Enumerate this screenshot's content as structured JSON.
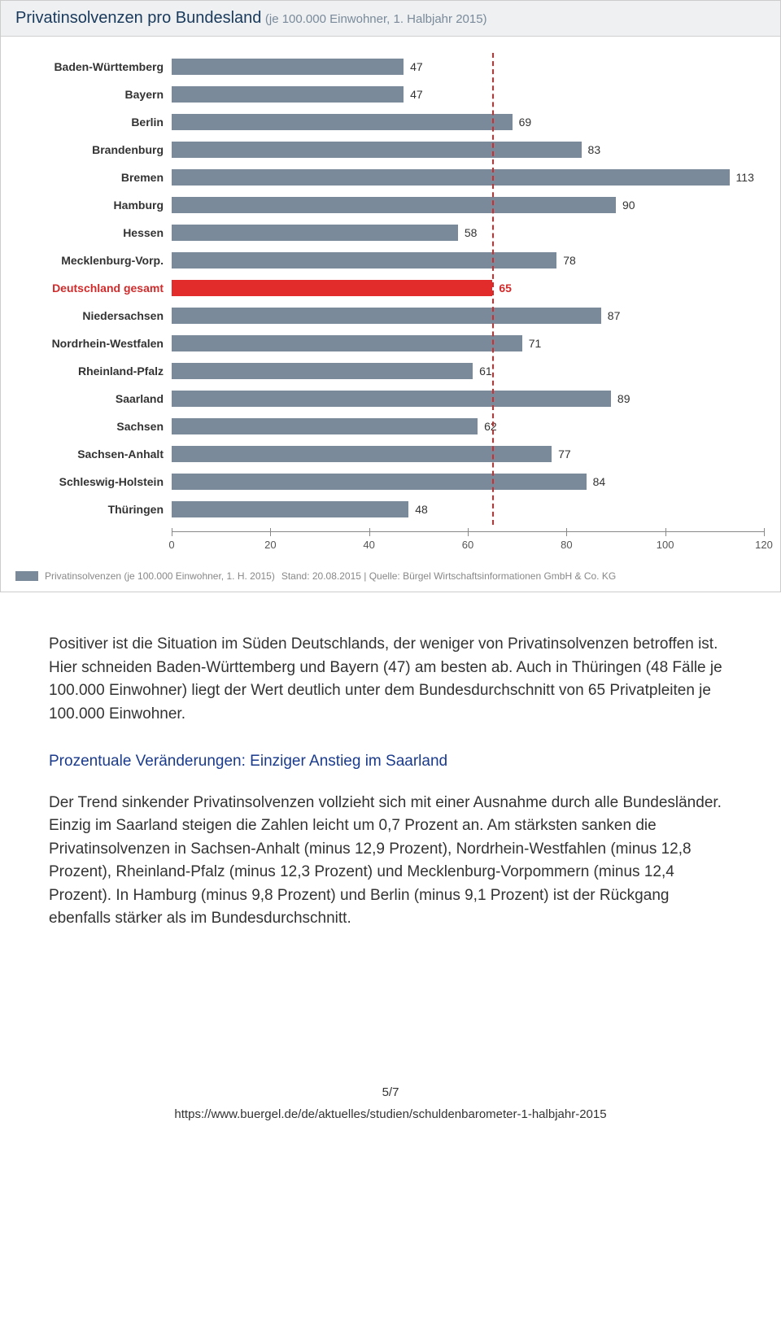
{
  "chart": {
    "title": "Privatinsolvenzen pro Bundesland",
    "subtitle": "(je 100.000 Einwohner, 1. Halbjahr 2015)",
    "type": "bar",
    "xmin": 0,
    "xmax": 120,
    "xtick_step": 20,
    "xticks": [
      0,
      20,
      40,
      60,
      80,
      100,
      120
    ],
    "reference_value": 65,
    "reference_color": "#d12b2b",
    "bar_color": "#7a8a9a",
    "highlight_bar_color": "#e22b2b",
    "label_fontsize": 14,
    "value_fontsize": 14,
    "background_color": "#ffffff",
    "header_bg": "#eef0f2",
    "rows": [
      {
        "label": "Baden-Württemberg",
        "value": 47,
        "highlight": false
      },
      {
        "label": "Bayern",
        "value": 47,
        "highlight": false
      },
      {
        "label": "Berlin",
        "value": 69,
        "highlight": false
      },
      {
        "label": "Brandenburg",
        "value": 83,
        "highlight": false
      },
      {
        "label": "Bremen",
        "value": 113,
        "highlight": false
      },
      {
        "label": "Hamburg",
        "value": 90,
        "highlight": false
      },
      {
        "label": "Hessen",
        "value": 58,
        "highlight": false
      },
      {
        "label": "Mecklenburg-Vorp.",
        "value": 78,
        "highlight": false
      },
      {
        "label": "Deutschland gesamt",
        "value": 65,
        "highlight": true
      },
      {
        "label": "Niedersachsen",
        "value": 87,
        "highlight": false
      },
      {
        "label": "Nordrhein-Westfalen",
        "value": 71,
        "highlight": false
      },
      {
        "label": "Rheinland-Pfalz",
        "value": 61,
        "highlight": false
      },
      {
        "label": "Saarland",
        "value": 89,
        "highlight": false
      },
      {
        "label": "Sachsen",
        "value": 62,
        "highlight": false
      },
      {
        "label": "Sachsen-Anhalt",
        "value": 77,
        "highlight": false
      },
      {
        "label": "Schleswig-Holstein",
        "value": 84,
        "highlight": false
      },
      {
        "label": "Thüringen",
        "value": 48,
        "highlight": false
      }
    ],
    "legend_label": "Privatinsolvenzen (je 100.000 Einwohner, 1. H. 2015)",
    "source_line": "Stand: 20.08.2015 | Quelle: Bürgel Wirtschaftsinformationen GmbH & Co. KG"
  },
  "article": {
    "p1": "Positiver ist die Situation im Süden Deutschlands, der weniger von Privatinsolvenzen betroffen ist. Hier schneiden Baden-Württemberg und Bayern (47) am besten ab. Auch in Thüringen (48 Fälle je 100.000 Einwohner) liegt der Wert deutlich unter dem Bundesdurchschnitt von 65 Privatpleiten je 100.000 Einwohner.",
    "h2": "Prozentuale Veränderungen: Einziger Anstieg im Saarland",
    "p2": "Der Trend sinkender Privatinsolvenzen vollzieht sich mit einer Ausnahme durch alle Bundesländer. Einzig im Saarland steigen die Zahlen leicht um 0,7 Prozent an. Am stärksten sanken die Privatinsolvenzen in Sachsen-Anhalt (minus 12,9 Prozent), Nordrhein-Westfahlen (minus 12,8 Prozent), Rheinland-Pfalz (minus 12,3 Prozent) und Mecklenburg-Vorpommern (minus 12,4 Prozent). In Hamburg (minus 9,8 Prozent) und Berlin (minus 9,1 Prozent) ist der Rückgang ebenfalls stärker als im Bundesdurchschnitt."
  },
  "footer": {
    "page": "5/7",
    "url": "https://www.buergel.de/de/aktuelles/studien/schuldenbarometer-1-halbjahr-2015"
  }
}
